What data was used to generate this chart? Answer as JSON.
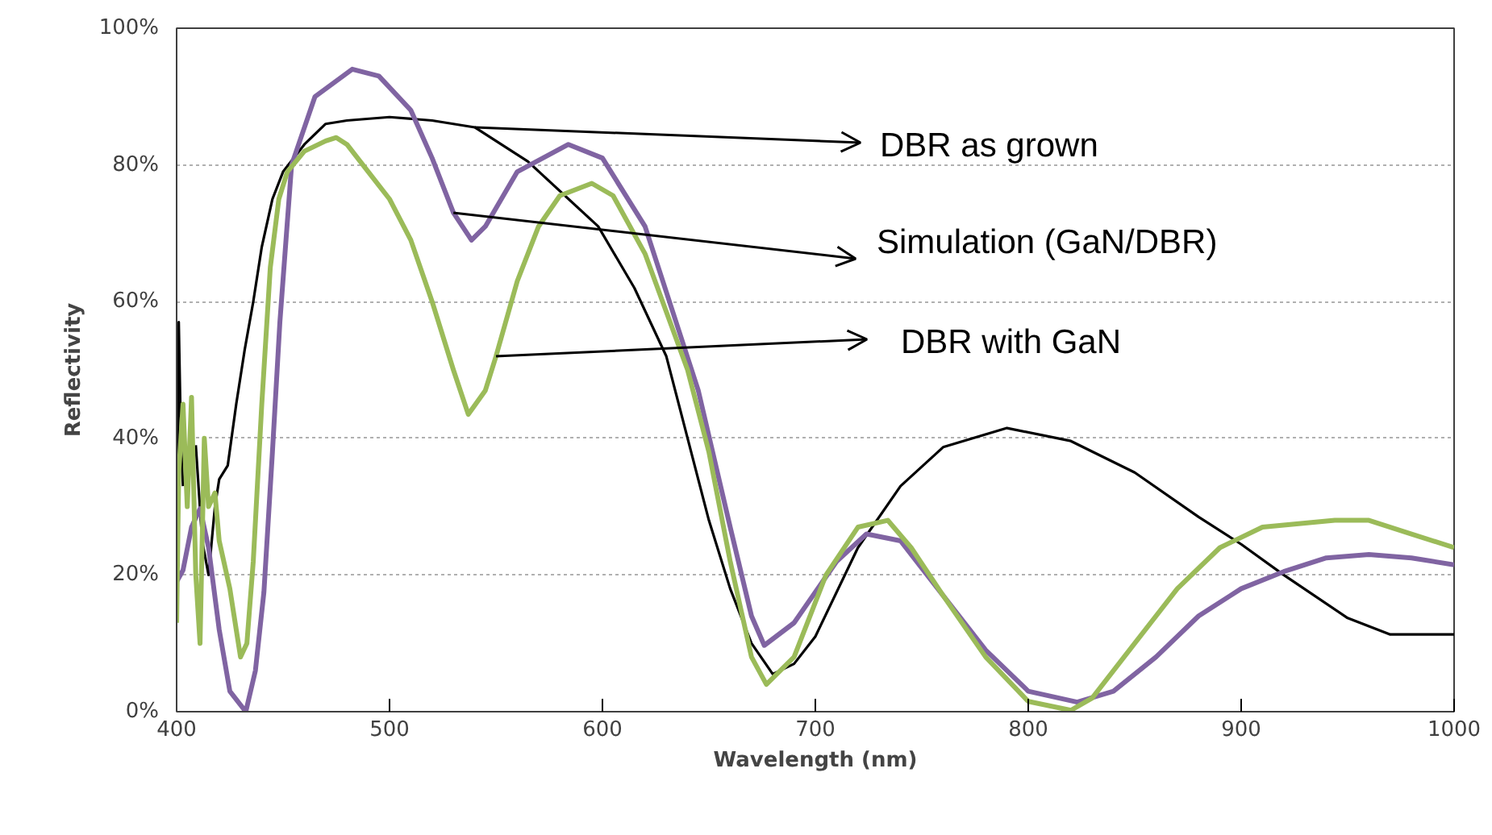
{
  "chart_data": {
    "type": "line",
    "xlabel": "Wavelength (nm)",
    "ylabel": "Reflectivity",
    "xlim": [
      400,
      1000
    ],
    "ylim": [
      0,
      100
    ],
    "xticks": [
      400,
      500,
      600,
      700,
      800,
      900,
      1000
    ],
    "yticks": [
      {
        "value": 0,
        "label": "0%"
      },
      {
        "value": 20,
        "label": "20%"
      },
      {
        "value": 40,
        "label": "40%"
      },
      {
        "value": 60,
        "label": "60%"
      },
      {
        "value": 80,
        "label": "80%"
      },
      {
        "value": 100,
        "label": "100%"
      }
    ],
    "grid": "y",
    "marker": "none",
    "line_style": "solid",
    "series": [
      {
        "color": "#000000",
        "x": [
          400,
          401,
          402,
          403,
          406,
          409,
          412,
          415,
          418,
          420,
          424,
          428,
          432,
          436,
          440,
          445,
          450,
          460,
          470,
          480,
          500,
          520,
          540,
          565,
          598,
          615,
          630,
          640,
          650,
          660,
          670,
          680,
          690,
          700,
          720,
          740,
          760,
          790,
          820,
          850,
          880,
          900,
          920,
          950,
          970,
          1000
        ],
        "values": [
          23,
          57,
          40,
          33,
          null,
          39,
          25,
          20,
          30,
          34,
          36,
          45,
          53,
          60,
          68,
          75,
          79,
          83,
          86,
          86.5,
          87,
          86.5,
          85.5,
          80.5,
          71,
          62,
          52,
          40,
          28,
          18,
          10,
          5.5,
          7,
          11,
          24,
          33,
          38.7,
          41.5,
          39.6,
          35,
          28.5,
          24.5,
          20,
          13.7,
          11.3,
          11.3
        ]
      },
      {
        "color": "#8064a2",
        "x": [
          400,
          403,
          407,
          411,
          415,
          420,
          425,
          432.5,
          437,
          441,
          445,
          448.5,
          454,
          465,
          482.5,
          495,
          510,
          520,
          530,
          538.5,
          545,
          560,
          584,
          600,
          620,
          645,
          660,
          670,
          676,
          690,
          710,
          724,
          740,
          760,
          780,
          800,
          823,
          840,
          860,
          880,
          900,
          920,
          940,
          960,
          980,
          1000
        ],
        "values": [
          19,
          20.7,
          27,
          29.7,
          24,
          12,
          3,
          0,
          6,
          17.5,
          38,
          57,
          80,
          90,
          94,
          93,
          88,
          81,
          73,
          69,
          71,
          79,
          83,
          81,
          71,
          47,
          27,
          14,
          9.7,
          13,
          22,
          26,
          25,
          17,
          9,
          3,
          1.4,
          3,
          8,
          14,
          18,
          20.5,
          22.5,
          23,
          22.5,
          21.5
        ]
      },
      {
        "color": "#9bbb59",
        "x": [
          400,
          401,
          403,
          405,
          407,
          409,
          411,
          413,
          415,
          418,
          420,
          425,
          428,
          430,
          433,
          436,
          440,
          444,
          448,
          452,
          460,
          470,
          475,
          480,
          490,
          500,
          510,
          520,
          530,
          537,
          545,
          550,
          560,
          570,
          580,
          595,
          605,
          620,
          640,
          650,
          660,
          670,
          677,
          690,
          705,
          720,
          734,
          745,
          760,
          780,
          800,
          820,
          830,
          850,
          870,
          890,
          910,
          944,
          960,
          980,
          1000
        ],
        "values": [
          13,
          35,
          45,
          30,
          46,
          20,
          10,
          40,
          30,
          32,
          25,
          18,
          12,
          8,
          10,
          22,
          45,
          65,
          75,
          79,
          82,
          83.5,
          84,
          83,
          79,
          75,
          69,
          60,
          50,
          43.5,
          47,
          52,
          63,
          71,
          75.5,
          77.3,
          75.5,
          67,
          50,
          38,
          22,
          8,
          4,
          8,
          20,
          27,
          28,
          24,
          17,
          8,
          1.5,
          0.2,
          2,
          10,
          18,
          24,
          27,
          28,
          28,
          26,
          24
        ]
      }
    ],
    "annotations": [
      {
        "text": "DBR as grown",
        "x": 540,
        "y": 85.5
      },
      {
        "text": "Simulation (GaN/DBR)",
        "x": 530,
        "y": 73
      },
      {
        "text": "DBR with GaN",
        "x": 550,
        "y": 52
      }
    ]
  }
}
